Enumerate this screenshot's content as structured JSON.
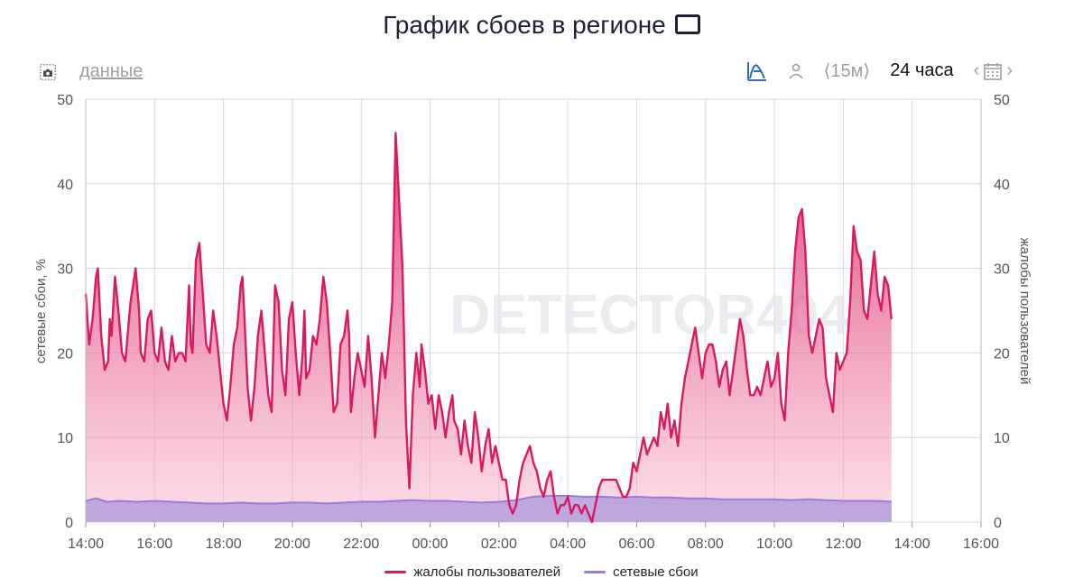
{
  "title": "График сбоев в регионе",
  "toolbar": {
    "data_link": "данные",
    "range_prev": "⟨15м⟩",
    "range_active": "24 часа",
    "camera_icon": "camera-icon",
    "area_icon": "area-chart-icon",
    "user_icon": "user-icon",
    "calendar_icon": "calendar-icon"
  },
  "watermark": "DETECTOR404",
  "colors": {
    "complaints": "#d81b60",
    "network": "#9b7be0",
    "grid": "#d8d8d8"
  },
  "chart_data": {
    "type": "area",
    "title": "График сбоев в регионе",
    "ylabel_left": "сетевые сбои, %",
    "ylabel_right": "жалобы пользователей",
    "ylim": [
      0,
      50
    ],
    "yticks": [
      0,
      10,
      20,
      30,
      40,
      50
    ],
    "xlim": [
      "14:00",
      "16:00 (+1 день)"
    ],
    "xticks": [
      "14:00",
      "16:00",
      "18:00",
      "20:00",
      "22:00",
      "00:00",
      "02:00",
      "04:00",
      "06:00",
      "08:00",
      "10:00",
      "12:00",
      "14:00",
      "16:00"
    ],
    "legend_position": "bottom",
    "series": [
      {
        "name": "жалобы пользователей",
        "points": [
          [
            0,
            27
          ],
          [
            0.1,
            21
          ],
          [
            0.2,
            24
          ],
          [
            0.3,
            29
          ],
          [
            0.35,
            30
          ],
          [
            0.45,
            22
          ],
          [
            0.55,
            18
          ],
          [
            0.65,
            19
          ],
          [
            0.7,
            24
          ],
          [
            0.75,
            22
          ],
          [
            0.85,
            29
          ],
          [
            0.95,
            25
          ],
          [
            1.05,
            20
          ],
          [
            1.15,
            19
          ],
          [
            1.3,
            26
          ],
          [
            1.45,
            30
          ],
          [
            1.55,
            25
          ],
          [
            1.6,
            20
          ],
          [
            1.7,
            19
          ],
          [
            1.8,
            24
          ],
          [
            1.9,
            25
          ],
          [
            2.0,
            20
          ],
          [
            2.1,
            19
          ],
          [
            2.2,
            23
          ],
          [
            2.3,
            19
          ],
          [
            2.4,
            18
          ],
          [
            2.5,
            22
          ],
          [
            2.6,
            19
          ],
          [
            2.7,
            20
          ],
          [
            2.8,
            20
          ],
          [
            2.9,
            19
          ],
          [
            3.0,
            28
          ],
          [
            3.05,
            21
          ],
          [
            3.1,
            20
          ],
          [
            3.2,
            31
          ],
          [
            3.3,
            33
          ],
          [
            3.4,
            27
          ],
          [
            3.5,
            21
          ],
          [
            3.6,
            20
          ],
          [
            3.7,
            25
          ],
          [
            3.8,
            22
          ],
          [
            3.9,
            18
          ],
          [
            4.0,
            14
          ],
          [
            4.1,
            12
          ],
          [
            4.2,
            16
          ],
          [
            4.3,
            21
          ],
          [
            4.4,
            23
          ],
          [
            4.5,
            28
          ],
          [
            4.55,
            29
          ],
          [
            4.6,
            25
          ],
          [
            4.7,
            16
          ],
          [
            4.8,
            12
          ],
          [
            4.9,
            16
          ],
          [
            5.0,
            22
          ],
          [
            5.1,
            25
          ],
          [
            5.2,
            20
          ],
          [
            5.3,
            15
          ],
          [
            5.4,
            13
          ],
          [
            5.5,
            28
          ],
          [
            5.6,
            26
          ],
          [
            5.7,
            18
          ],
          [
            5.8,
            15
          ],
          [
            5.9,
            24
          ],
          [
            6.0,
            26
          ],
          [
            6.1,
            20
          ],
          [
            6.2,
            15
          ],
          [
            6.3,
            20
          ],
          [
            6.35,
            25
          ],
          [
            6.4,
            17
          ],
          [
            6.5,
            18
          ],
          [
            6.6,
            22
          ],
          [
            6.7,
            21
          ],
          [
            6.8,
            24
          ],
          [
            6.9,
            29
          ],
          [
            7.0,
            26
          ],
          [
            7.1,
            20
          ],
          [
            7.2,
            13
          ],
          [
            7.3,
            14
          ],
          [
            7.4,
            21
          ],
          [
            7.5,
            22
          ],
          [
            7.6,
            25
          ],
          [
            7.65,
            22
          ],
          [
            7.7,
            13
          ],
          [
            7.8,
            17
          ],
          [
            7.9,
            20
          ],
          [
            8.0,
            18
          ],
          [
            8.1,
            16
          ],
          [
            8.2,
            22
          ],
          [
            8.3,
            17
          ],
          [
            8.4,
            10
          ],
          [
            8.5,
            15
          ],
          [
            8.6,
            20
          ],
          [
            8.7,
            17
          ],
          [
            8.8,
            21
          ],
          [
            8.9,
            26
          ],
          [
            9.0,
            46
          ],
          [
            9.1,
            38
          ],
          [
            9.2,
            30
          ],
          [
            9.3,
            12
          ],
          [
            9.35,
            8
          ],
          [
            9.4,
            4
          ],
          [
            9.5,
            15
          ],
          [
            9.6,
            20
          ],
          [
            9.7,
            16
          ],
          [
            9.75,
            21
          ],
          [
            9.85,
            18
          ],
          [
            9.95,
            14
          ],
          [
            10.05,
            15
          ],
          [
            10.15,
            11
          ],
          [
            10.25,
            15
          ],
          [
            10.35,
            13
          ],
          [
            10.45,
            10
          ],
          [
            10.55,
            13
          ],
          [
            10.65,
            15
          ],
          [
            10.7,
            12
          ],
          [
            10.8,
            11
          ],
          [
            10.9,
            8
          ],
          [
            11.0,
            12
          ],
          [
            11.1,
            9
          ],
          [
            11.2,
            7
          ],
          [
            11.3,
            13
          ],
          [
            11.4,
            10
          ],
          [
            11.5,
            6
          ],
          [
            11.6,
            9
          ],
          [
            11.7,
            11
          ],
          [
            11.8,
            7
          ],
          [
            11.9,
            9
          ],
          [
            12.0,
            7
          ],
          [
            12.1,
            5
          ],
          [
            12.2,
            5
          ],
          [
            12.3,
            2
          ],
          [
            12.4,
            1
          ],
          [
            12.5,
            2
          ],
          [
            12.6,
            5
          ],
          [
            12.7,
            7
          ],
          [
            12.8,
            8
          ],
          [
            12.9,
            9
          ],
          [
            13.0,
            7
          ],
          [
            13.1,
            6
          ],
          [
            13.2,
            4
          ],
          [
            13.3,
            3
          ],
          [
            13.4,
            5
          ],
          [
            13.5,
            6
          ],
          [
            13.6,
            3
          ],
          [
            13.7,
            1
          ],
          [
            13.8,
            2
          ],
          [
            13.9,
            2
          ],
          [
            14.0,
            3
          ],
          [
            14.1,
            1
          ],
          [
            14.2,
            2
          ],
          [
            14.3,
            2
          ],
          [
            14.4,
            1
          ],
          [
            14.5,
            2
          ],
          [
            14.6,
            1
          ],
          [
            14.7,
            0
          ],
          [
            14.8,
            2
          ],
          [
            14.9,
            4
          ],
          [
            15.0,
            5
          ],
          [
            15.2,
            5
          ],
          [
            15.4,
            5
          ],
          [
            15.5,
            4
          ],
          [
            15.6,
            3
          ],
          [
            15.7,
            3
          ],
          [
            15.8,
            4
          ],
          [
            15.9,
            7
          ],
          [
            16.0,
            6
          ],
          [
            16.1,
            8
          ],
          [
            16.2,
            10
          ],
          [
            16.3,
            8
          ],
          [
            16.4,
            9
          ],
          [
            16.5,
            10
          ],
          [
            16.6,
            9
          ],
          [
            16.7,
            13
          ],
          [
            16.8,
            11
          ],
          [
            16.9,
            14
          ],
          [
            17.0,
            10
          ],
          [
            17.1,
            12
          ],
          [
            17.2,
            9
          ],
          [
            17.3,
            14
          ],
          [
            17.4,
            17
          ],
          [
            17.5,
            19
          ],
          [
            17.6,
            21
          ],
          [
            17.7,
            23
          ],
          [
            17.8,
            20
          ],
          [
            17.9,
            17
          ],
          [
            18.0,
            20
          ],
          [
            18.1,
            21
          ],
          [
            18.2,
            21
          ],
          [
            18.3,
            19
          ],
          [
            18.4,
            16
          ],
          [
            18.5,
            18
          ],
          [
            18.6,
            19
          ],
          [
            18.7,
            15
          ],
          [
            18.8,
            18
          ],
          [
            18.9,
            21
          ],
          [
            19.0,
            24
          ],
          [
            19.1,
            22
          ],
          [
            19.2,
            18
          ],
          [
            19.3,
            15
          ],
          [
            19.4,
            15
          ],
          [
            19.5,
            16
          ],
          [
            19.6,
            15
          ],
          [
            19.7,
            17
          ],
          [
            19.8,
            19
          ],
          [
            19.9,
            16
          ],
          [
            20.0,
            17
          ],
          [
            20.1,
            20
          ],
          [
            20.2,
            14
          ],
          [
            20.3,
            12
          ],
          [
            20.4,
            20
          ],
          [
            20.5,
            25
          ],
          [
            20.6,
            32
          ],
          [
            20.7,
            36
          ],
          [
            20.8,
            37
          ],
          [
            20.9,
            32
          ],
          [
            21.0,
            22
          ],
          [
            21.1,
            20
          ],
          [
            21.2,
            22
          ],
          [
            21.3,
            24
          ],
          [
            21.4,
            23
          ],
          [
            21.5,
            17
          ],
          [
            21.6,
            15
          ],
          [
            21.7,
            13
          ],
          [
            21.8,
            20
          ],
          [
            21.9,
            18
          ],
          [
            22.0,
            19
          ],
          [
            22.1,
            20
          ],
          [
            22.2,
            26
          ],
          [
            22.3,
            35
          ],
          [
            22.4,
            32
          ],
          [
            22.5,
            31
          ],
          [
            22.6,
            25
          ],
          [
            22.7,
            24
          ],
          [
            22.8,
            28
          ],
          [
            22.9,
            32
          ],
          [
            23.0,
            27
          ],
          [
            23.1,
            25
          ],
          [
            23.2,
            29
          ],
          [
            23.3,
            28
          ],
          [
            23.4,
            24
          ]
        ]
      },
      {
        "name": "сетевые сбои",
        "points": [
          [
            0,
            2.5
          ],
          [
            0.3,
            2.8
          ],
          [
            0.6,
            2.4
          ],
          [
            1.0,
            2.5
          ],
          [
            1.5,
            2.4
          ],
          [
            2.0,
            2.5
          ],
          [
            2.5,
            2.4
          ],
          [
            3.0,
            2.3
          ],
          [
            3.5,
            2.2
          ],
          [
            4.0,
            2.2
          ],
          [
            4.5,
            2.3
          ],
          [
            5.0,
            2.2
          ],
          [
            5.5,
            2.2
          ],
          [
            6.0,
            2.3
          ],
          [
            6.5,
            2.3
          ],
          [
            7.0,
            2.2
          ],
          [
            7.5,
            2.3
          ],
          [
            8.0,
            2.4
          ],
          [
            8.5,
            2.4
          ],
          [
            9.0,
            2.5
          ],
          [
            9.5,
            2.6
          ],
          [
            10.0,
            2.5
          ],
          [
            10.5,
            2.5
          ],
          [
            11.0,
            2.4
          ],
          [
            11.5,
            2.3
          ],
          [
            12.0,
            2.4
          ],
          [
            12.5,
            2.6
          ],
          [
            13.0,
            3.0
          ],
          [
            13.5,
            3.1
          ],
          [
            14.0,
            3.1
          ],
          [
            14.5,
            3.0
          ],
          [
            15.0,
            3.0
          ],
          [
            15.5,
            2.9
          ],
          [
            16.0,
            3.0
          ],
          [
            16.5,
            2.9
          ],
          [
            17.0,
            2.9
          ],
          [
            17.5,
            2.8
          ],
          [
            18.0,
            2.8
          ],
          [
            18.5,
            2.7
          ],
          [
            19.0,
            2.7
          ],
          [
            19.5,
            2.7
          ],
          [
            20.0,
            2.7
          ],
          [
            20.5,
            2.6
          ],
          [
            21.0,
            2.7
          ],
          [
            21.5,
            2.6
          ],
          [
            22.0,
            2.5
          ],
          [
            22.5,
            2.5
          ],
          [
            23.0,
            2.5
          ],
          [
            23.4,
            2.4
          ]
        ]
      }
    ]
  }
}
